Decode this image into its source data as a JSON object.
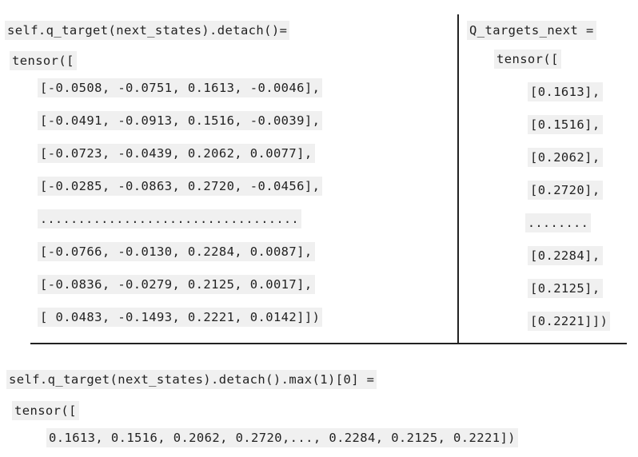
{
  "left": {
    "header": "self.q_target(next_states).detach()=",
    "open": "tensor([",
    "rows": [
      "[-0.0508, -0.0751, 0.1613, -0.0046],",
      "[-0.0491, -0.0913, 0.1516, -0.0039],",
      "[-0.0723, -0.0439, 0.2062, 0.0077],",
      "[-0.0285, -0.0863, 0.2720, -0.0456],",
      "..................................",
      "[-0.0766, -0.0130, 0.2284, 0.0087],",
      "[-0.0836, -0.0279, 0.2125, 0.0017],",
      "[ 0.0483, -0.1493, 0.2221, 0.0142]])"
    ]
  },
  "right": {
    "header": "Q_targets_next =",
    "open": "tensor([",
    "rows": [
      "[0.1613],",
      "[0.1516],",
      "[0.2062],",
      "[0.2720],",
      "........",
      "[0.2284],",
      "[0.2125],",
      "[0.2221]])"
    ]
  },
  "bottom": {
    "header": "self.q_target(next_states).detach().max(1)[0] =",
    "open": "tensor([",
    "values": "0.1613, 0.1516, 0.2062, 0.2720,..., 0.2284, 0.2125, 0.2221])"
  }
}
